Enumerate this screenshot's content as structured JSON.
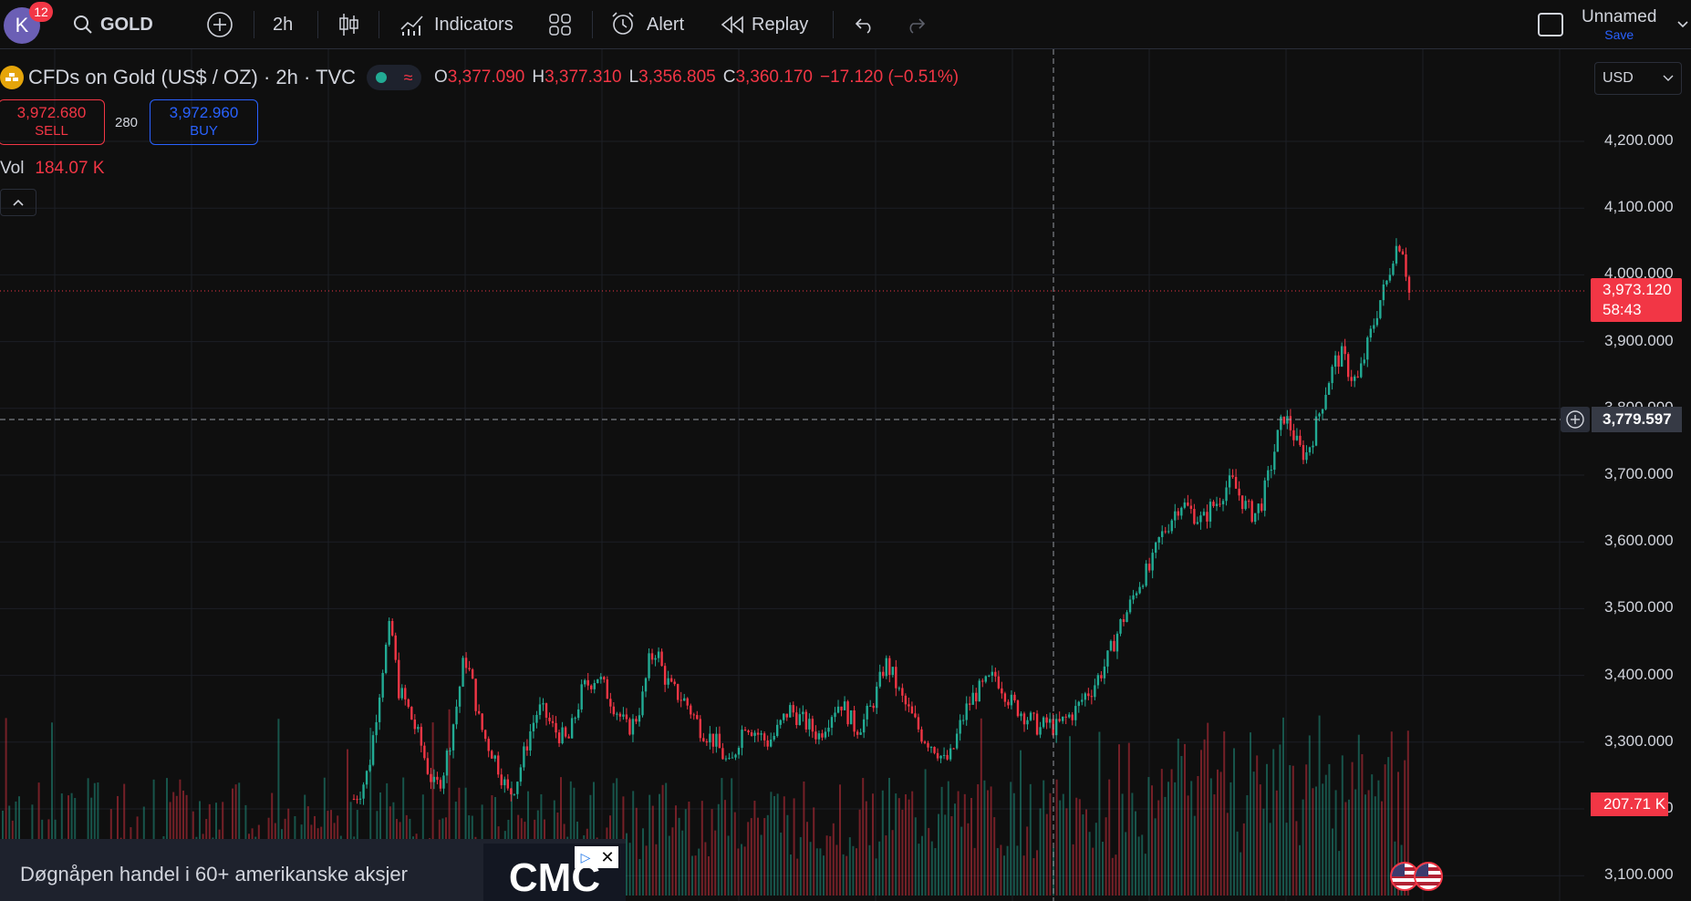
{
  "toolbar": {
    "avatar_letter": "K",
    "notifications": "12",
    "symbol": "GOLD",
    "interval": "2h",
    "indicators_label": "Indicators",
    "alert_label": "Alert",
    "replay_label": "Replay",
    "layout_name": "Unnamed",
    "save_label": "Save"
  },
  "legend": {
    "title": "CFDs on Gold (US$ / OZ) · 2h · TVC",
    "open_key": "O",
    "open": "3,377.090",
    "high_key": "H",
    "high": "3,377.310",
    "low_key": "L",
    "low": "3,356.805",
    "close_key": "C",
    "close": "3,360.170",
    "change": "−17.120 (−0.51%)"
  },
  "trade": {
    "sell_price": "3,972.680",
    "sell_label": "SELL",
    "spread": "280",
    "buy_price": "3,972.960",
    "buy_label": "BUY"
  },
  "volume": {
    "label": "Vol",
    "value": "184.07 K"
  },
  "price_axis": {
    "currency": "USD",
    "ticks": [
      "4,200.000",
      "4,100.000",
      "4,000.000",
      "3,900.000",
      "3,800.000",
      "3,700.000",
      "3,600.000",
      "3,500.000",
      "3,400.000",
      "3,300.000",
      "3,200.000",
      "3,100.000"
    ],
    "last_price": "3,973.120",
    "countdown": "58:43",
    "crosshair_price": "3,779.597",
    "volume_tag": "207.71 K"
  },
  "ad": {
    "text": "Døgnåpen handel i 60+ amerikanske aksjer",
    "logo_text": "CMC"
  },
  "colors": {
    "up": "#22ab94",
    "down": "#f23645",
    "accent": "#2962ff",
    "background": "#0f0f0f"
  },
  "chart_data": {
    "type": "candlestick",
    "symbol": "GOLD",
    "interval": "2h",
    "ylim": [
      3060,
      4260
    ],
    "close_path": [
      3215,
      3230,
      3260,
      3340,
      3420,
      3480,
      3380,
      3360,
      3330,
      3300,
      3260,
      3230,
      3250,
      3300,
      3360,
      3430,
      3390,
      3330,
      3300,
      3280,
      3250,
      3220,
      3240,
      3280,
      3320,
      3350,
      3340,
      3320,
      3310,
      3300,
      3340,
      3380,
      3390,
      3400,
      3380,
      3360,
      3340,
      3320,
      3330,
      3360,
      3420,
      3440,
      3400,
      3380,
      3370,
      3360,
      3340,
      3320,
      3310,
      3300,
      3280,
      3260,
      3300,
      3330,
      3320,
      3310,
      3300,
      3310,
      3330,
      3350,
      3340,
      3330,
      3320,
      3310,
      3330,
      3350,
      3360,
      3340,
      3320,
      3330,
      3350,
      3380,
      3420,
      3400,
      3370,
      3350,
      3330,
      3310,
      3300,
      3290,
      3270,
      3280,
      3320,
      3350,
      3370,
      3380,
      3390,
      3400,
      3380,
      3360,
      3350,
      3340,
      3330,
      3320,
      3330,
      3320,
      3330,
      3340,
      3350,
      3370,
      3380,
      3400,
      3420,
      3450,
      3480,
      3500,
      3530,
      3550,
      3560,
      3600,
      3620,
      3640,
      3660,
      3650,
      3640,
      3630,
      3650,
      3660,
      3680,
      3690,
      3670,
      3650,
      3640,
      3660,
      3700,
      3750,
      3790,
      3770,
      3740,
      3730,
      3760,
      3800,
      3840,
      3870,
      3880,
      3850,
      3840,
      3880,
      3920,
      3960,
      3990,
      4040,
      4050,
      3973
    ]
  }
}
